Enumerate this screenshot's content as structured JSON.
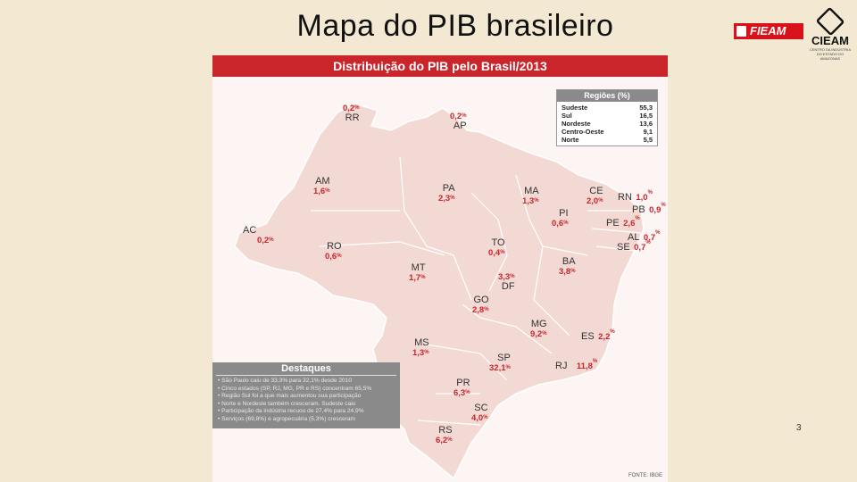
{
  "slide": {
    "title": "Mapa do PIB brasileiro",
    "page_number": "3"
  },
  "logos": {
    "fieam": "FIEAM",
    "cieam": "CIEAM",
    "cieam_sub": "CENTRO DA INDÚSTRIA DO ESTADO DO AMAZONAS"
  },
  "figure": {
    "title": "Distribuição do PIB pelo Brasil/2013",
    "source": "FONTE: IBGE",
    "colors": {
      "header": "#c9252b",
      "map_fill": "#f3d9d3",
      "value": "#c9252b"
    }
  },
  "regions_legend": {
    "title": "Regiões (%)",
    "rows": [
      {
        "name": "Sudeste",
        "value": "55,3"
      },
      {
        "name": "Sul",
        "value": "16,5"
      },
      {
        "name": "Nordeste",
        "value": "13,6"
      },
      {
        "name": "Centro-Oeste",
        "value": "9,1"
      },
      {
        "name": "Norte",
        "value": "5,5"
      }
    ]
  },
  "highlights": {
    "title": "Destaques",
    "items": [
      "• São Paulo caiu de 33,3% para 32,1% desde 2010",
      "• Cinco estados (SP, RJ, MG, PR e RS) concentram 65,5%",
      "• Região Sul foi a que mais aumentou sua participação",
      "• Norte e Nordeste também cresceram. Sudeste caiu",
      "• Participação da indústria recuou de 27,4% para 24,9%",
      "• Serviços (69,8%) e agropecuária (5,3%) cresceram"
    ]
  },
  "states": [
    {
      "code": "RR",
      "value": "0,2"
    },
    {
      "code": "AP",
      "value": "0,2"
    },
    {
      "code": "AM",
      "value": "1,6"
    },
    {
      "code": "PA",
      "value": "2,3"
    },
    {
      "code": "MA",
      "value": "1,3"
    },
    {
      "code": "CE",
      "value": "2,0"
    },
    {
      "code": "RN",
      "value": "1,0"
    },
    {
      "code": "PB",
      "value": "0,9"
    },
    {
      "code": "PI",
      "value": "0,6"
    },
    {
      "code": "PE",
      "value": "2,6"
    },
    {
      "code": "AL",
      "value": "0,7"
    },
    {
      "code": "SE",
      "value": "0,7"
    },
    {
      "code": "AC",
      "value": "0,2"
    },
    {
      "code": "RO",
      "value": "0,6"
    },
    {
      "code": "TO",
      "value": "0,4"
    },
    {
      "code": "BA",
      "value": "3,8"
    },
    {
      "code": "MT",
      "value": "1,7"
    },
    {
      "code": "DF",
      "value": "3,3"
    },
    {
      "code": "GO",
      "value": "2,8"
    },
    {
      "code": "MG",
      "value": "9,2"
    },
    {
      "code": "ES",
      "value": "2,2"
    },
    {
      "code": "MS",
      "value": "1,3"
    },
    {
      "code": "SP",
      "value": "32,1"
    },
    {
      "code": "RJ",
      "value": "11,8"
    },
    {
      "code": "PR",
      "value": "6,3"
    },
    {
      "code": "SC",
      "value": "4,0"
    },
    {
      "code": "RS",
      "value": "6,2"
    }
  ]
}
